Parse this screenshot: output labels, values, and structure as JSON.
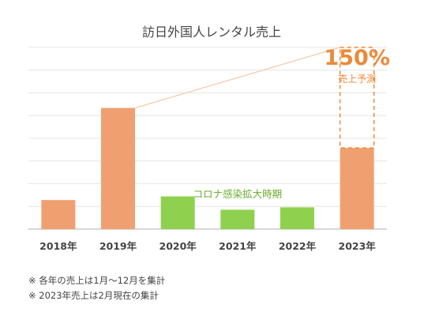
{
  "chart_data": {
    "type": "bar",
    "title": "訪日外国人レンタル売上",
    "categories": [
      "2018年",
      "2019年",
      "2020年",
      "2021年",
      "2022年",
      "2023年"
    ],
    "values": [
      24,
      100,
      27,
      16,
      18,
      67
    ],
    "bar_colors": [
      "#f0a070",
      "#f0a070",
      "#8fd14f",
      "#8fd14f",
      "#8fd14f",
      "#f0a070"
    ],
    "forecast": {
      "category": "2023年",
      "value": 150,
      "label": "売上予測",
      "percent_label": "150%"
    },
    "period_annotation": "コロナ感染拡大時期",
    "ylim": [
      0,
      150
    ],
    "grid": true,
    "accent_color": "#ec8a3a",
    "covid_text_color": "#6cae2f"
  },
  "notes": [
    "※ 各年の売上は1月～12月を集計",
    "※ 2023年売上は2月現在の集計"
  ]
}
